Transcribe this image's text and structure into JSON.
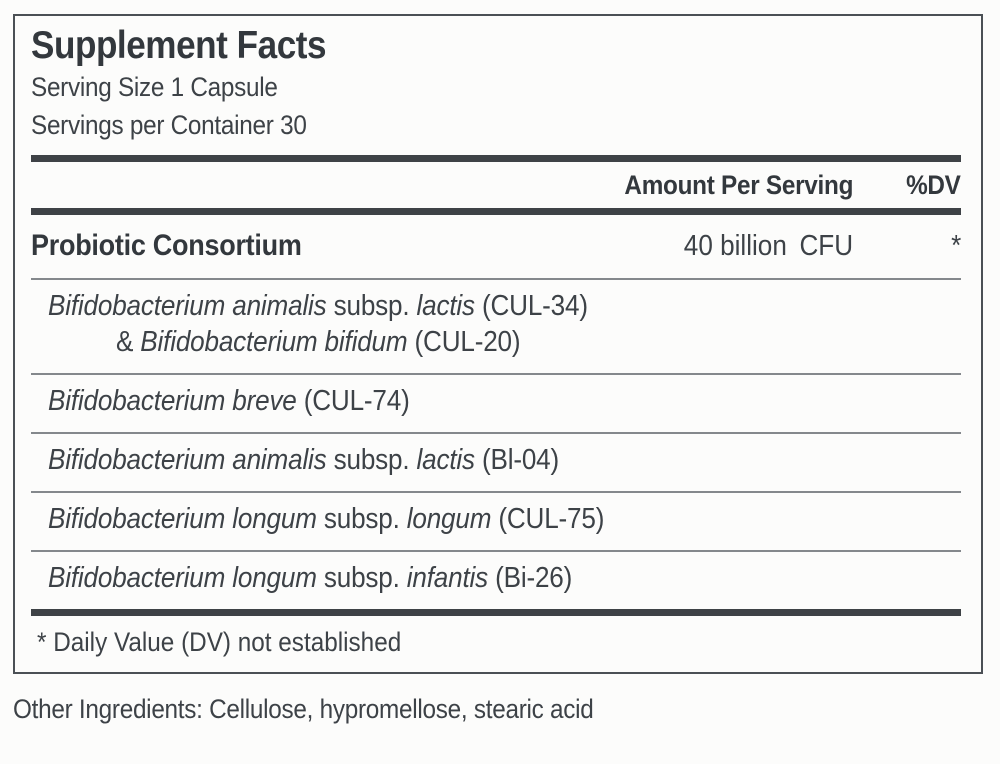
{
  "label": {
    "title": "Supplement Facts",
    "serving_size": "Serving Size 1 Capsule",
    "servings_per_container": "Servings per Container 30",
    "columns": {
      "amount": "Amount Per Serving",
      "dv": "%DV"
    },
    "group": {
      "name": "Probiotic Consortium",
      "amount": "40 billion",
      "unit": "CFU",
      "dv": "*"
    },
    "strains": [
      {
        "lines": [
          [
            {
              "t": "Bifidobacterium animalis",
              "i": true
            },
            {
              "t": " subsp. ",
              "i": false
            },
            {
              "t": "lactis",
              "i": true
            },
            {
              "t": " (CUL-34)",
              "i": false
            }
          ],
          [
            {
              "t": "& ",
              "i": false
            },
            {
              "t": "Bifidobacterium bifidum",
              "i": true
            },
            {
              "t": " (CUL-20)",
              "i": false
            }
          ]
        ]
      },
      {
        "lines": [
          [
            {
              "t": "Bifidobacterium breve",
              "i": true
            },
            {
              "t": " (CUL-74)",
              "i": false
            }
          ]
        ]
      },
      {
        "lines": [
          [
            {
              "t": "Bifidobacterium animalis",
              "i": true
            },
            {
              "t": " subsp. ",
              "i": false
            },
            {
              "t": "lactis",
              "i": true
            },
            {
              "t": " (Bl-04)",
              "i": false
            }
          ]
        ]
      },
      {
        "lines": [
          [
            {
              "t": "Bifidobacterium longum",
              "i": true
            },
            {
              "t": " subsp. ",
              "i": false
            },
            {
              "t": "longum",
              "i": true
            },
            {
              "t": " (CUL-75)",
              "i": false
            }
          ]
        ]
      },
      {
        "lines": [
          [
            {
              "t": "Bifidobacterium longum",
              "i": true
            },
            {
              "t": " subsp. ",
              "i": false
            },
            {
              "t": "infantis",
              "i": true
            },
            {
              "t": " (Bi-26)",
              "i": false
            }
          ]
        ]
      }
    ],
    "footnote": "* Daily Value (DV) not established"
  },
  "other_ingredients": "Other Ingredients: Cellulose, hypromellose, stearic acid",
  "colors": {
    "text": "#3d4247",
    "text-bold": "#33383d",
    "bar": "#3e4246",
    "rule": "#84888c",
    "border": "#4b5055",
    "bg": "#fcfcfb"
  }
}
